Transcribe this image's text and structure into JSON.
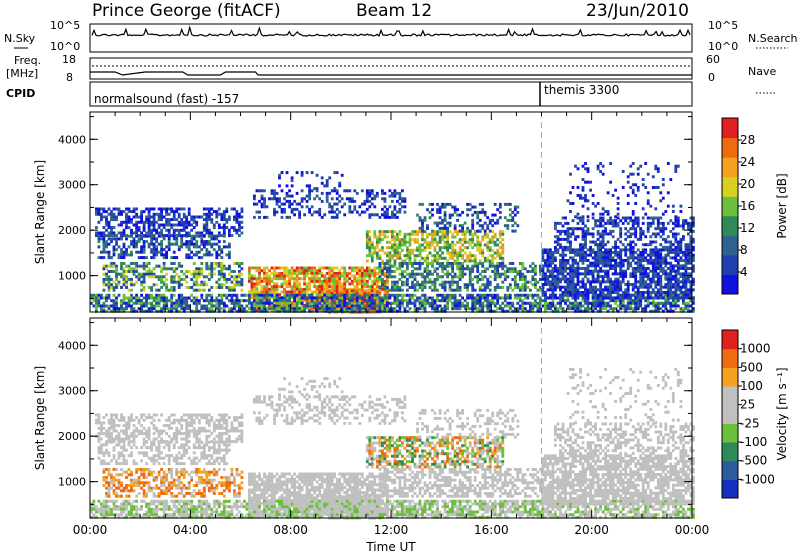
{
  "header": {
    "station": "Prince George (fitACF)",
    "beam": "Beam 12",
    "date": "23/Jun/2010"
  },
  "panels": {
    "nsky_label": "N.Sky",
    "nsearch_label": "N.Search",
    "noise_ticks_left": [
      "10^5",
      "10^0"
    ],
    "noise_ticks_right": [
      "10^5",
      "10^0"
    ],
    "freq_label_top": "Freq.",
    "freq_label_bottom": "[MHz]",
    "freq_ticks": [
      "18",
      "8"
    ],
    "nave_label": "Nave",
    "nave_ticks": [
      "60",
      "0"
    ],
    "cpid_label": "CPID",
    "cpid_segments": [
      {
        "name": "normalsound (fast) -157",
        "start_hour": 0
      },
      {
        "name": "themis 3300",
        "start_hour": 18.0
      }
    ]
  },
  "chart_data": [
    {
      "type": "heatmap",
      "name": "power",
      "xlabel": "",
      "ylabel": "Slant Range [km]",
      "xlim": [
        0,
        24
      ],
      "ylim": [
        200,
        4600
      ],
      "yticks": [
        "4000",
        "3000",
        "2000",
        "1000"
      ],
      "colorbar_label": "Power [dB]",
      "colorbar_ticks": [
        "28",
        "24",
        "20",
        "16",
        "12",
        "8",
        "4"
      ],
      "colors": [
        "#1010e0",
        "#2040b0",
        "#306090",
        "#2e8b57",
        "#6cbf3a",
        "#d8d020",
        "#f5a020",
        "#f06a10",
        "#e02020"
      ]
    },
    {
      "type": "heatmap",
      "name": "velocity",
      "xlabel": "Time UT",
      "ylabel": "Slant Range [km]",
      "xlim": [
        0,
        24
      ],
      "ylim": [
        200,
        4600
      ],
      "yticks": [
        "4000",
        "3000",
        "2000",
        "1000"
      ],
      "xticks": [
        "00:00",
        "04:00",
        "08:00",
        "12:00",
        "16:00",
        "20:00",
        "00:00"
      ],
      "colorbar_label": "Velocity [m s⁻¹]",
      "colorbar_ticks": [
        "1000",
        "500",
        "100",
        "25",
        "-25",
        "-100",
        "-500",
        "-1000"
      ],
      "colors": [
        "#1530c0",
        "#2e5aa0",
        "#2e8b57",
        "#6cbf3a",
        "#c0c0c0",
        "#c0c0c0",
        "#f5a020",
        "#f06a10",
        "#e02020"
      ]
    }
  ]
}
